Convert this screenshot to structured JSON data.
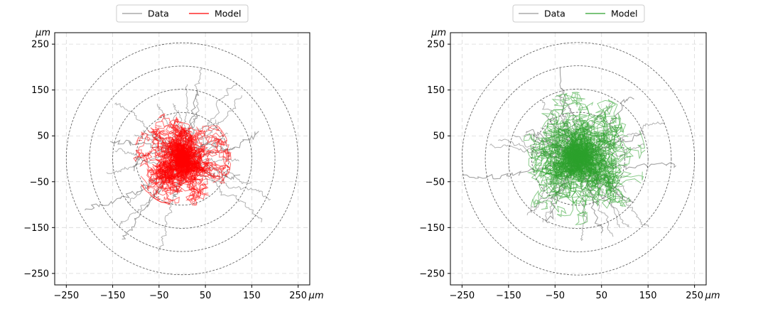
{
  "chart_data": [
    {
      "type": "line",
      "panel": "left",
      "x_unit": "μm",
      "y_unit": "μm",
      "xlim": [
        -275,
        275
      ],
      "ylim": [
        -275,
        275
      ],
      "xticks": [
        -250,
        -150,
        -50,
        50,
        150,
        250
      ],
      "yticks": [
        250,
        150,
        50,
        -50,
        -150,
        -250
      ],
      "xtick_labels": [
        "−250",
        "−150",
        "−50",
        "50",
        "150",
        "250"
      ],
      "ytick_labels": [
        "250",
        "150",
        "50",
        "−50",
        "−150",
        "−250"
      ],
      "grid": true,
      "reference_circles_radius": [
        100,
        150,
        200,
        250
      ],
      "legend_position": "top-center",
      "legend": [
        {
          "label": "Data",
          "color": "#999999"
        },
        {
          "label": "Model",
          "color": "#ff0000"
        }
      ],
      "series": [
        {
          "name": "Data",
          "color": "#999999",
          "tracks": [
            [
              [
                0,
                0
              ],
              [
                -20,
                -18
              ],
              [
                -45,
                -35
              ],
              [
                -70,
                -55
              ],
              [
                -95,
                -70
              ],
              [
                -120,
                -82
              ],
              [
                -150,
                -92
              ],
              [
                -180,
                -100
              ],
              [
                -210,
                -112
              ]
            ],
            [
              [
                0,
                0
              ],
              [
                -15,
                -25
              ],
              [
                -35,
                -55
              ],
              [
                -55,
                -80
              ],
              [
                -80,
                -105
              ],
              [
                -100,
                -130
              ],
              [
                -115,
                -155
              ],
              [
                -130,
                -175
              ]
            ],
            [
              [
                0,
                0
              ],
              [
                25,
                8
              ],
              [
                55,
                15
              ],
              [
                90,
                20
              ],
              [
                120,
                30
              ],
              [
                145,
                42
              ],
              [
                165,
                60
              ]
            ],
            [
              [
                0,
                0
              ],
              [
                10,
                25
              ],
              [
                15,
                55
              ],
              [
                20,
                85
              ],
              [
                25,
                110
              ],
              [
                30,
                150
              ]
            ],
            [
              [
                0,
                0
              ],
              [
                -30,
                15
              ],
              [
                -60,
                25
              ],
              [
                -95,
                33
              ],
              [
                -130,
                36
              ],
              [
                -155,
                38
              ]
            ],
            [
              [
                0,
                0
              ],
              [
                20,
                -10
              ],
              [
                45,
                -25
              ],
              [
                70,
                -38
              ],
              [
                95,
                -42
              ],
              [
                125,
                -35
              ]
            ],
            [
              [
                0,
                0
              ],
              [
                -20,
                10
              ],
              [
                -50,
                18
              ],
              [
                -80,
                10
              ],
              [
                -100,
                -5
              ],
              [
                -105,
                -25
              ]
            ],
            [
              [
                0,
                0
              ],
              [
                5,
                -20
              ],
              [
                0,
                -45
              ],
              [
                -10,
                -65
              ],
              [
                -20,
                -80
              ]
            ],
            [
              [
                0,
                0
              ],
              [
                30,
                20
              ],
              [
                50,
                35
              ],
              [
                70,
                30
              ],
              [
                85,
                45
              ]
            ],
            [
              [
                0,
                0
              ],
              [
                -10,
                20
              ],
              [
                -30,
                35
              ],
              [
                -50,
                45
              ],
              [
                -60,
                60
              ]
            ]
          ]
        },
        {
          "name": "Model",
          "color": "#ff0000",
          "radius_extent": 105
        }
      ]
    },
    {
      "type": "line",
      "panel": "right",
      "x_unit": "μm",
      "y_unit": "μm",
      "xlim": [
        -275,
        275
      ],
      "ylim": [
        -275,
        275
      ],
      "xticks": [
        -250,
        -150,
        -50,
        50,
        150,
        250
      ],
      "yticks": [
        250,
        150,
        50,
        -50,
        -150,
        -250
      ],
      "xtick_labels": [
        "−250",
        "−150",
        "−50",
        "50",
        "150",
        "250"
      ],
      "ytick_labels": [
        "250",
        "150",
        "50",
        "−50",
        "−150",
        "−250"
      ],
      "grid": true,
      "reference_circles_radius": [
        100,
        150,
        200,
        250
      ],
      "legend_position": "top-center",
      "legend": [
        {
          "label": "Data",
          "color": "#999999"
        },
        {
          "label": "Model",
          "color": "#2ca02c"
        }
      ],
      "series": [
        {
          "name": "Data",
          "color": "#999999",
          "tracks": [
            [
              [
                0,
                0
              ],
              [
                -40,
                -10
              ],
              [
                -80,
                -20
              ],
              [
                -120,
                -30
              ],
              [
                -150,
                -35
              ],
              [
                -180,
                -40
              ],
              [
                -210,
                -38
              ],
              [
                -250,
                -35
              ]
            ],
            [
              [
                0,
                0
              ],
              [
                -15,
                30
              ],
              [
                -25,
                70
              ],
              [
                -30,
                110
              ],
              [
                -35,
                150
              ],
              [
                -40,
                200
              ]
            ],
            [
              [
                0,
                0
              ],
              [
                30,
                -10
              ],
              [
                70,
                -15
              ],
              [
                110,
                -20
              ],
              [
                150,
                -15
              ],
              [
                185,
                -10
              ],
              [
                210,
                -15
              ]
            ],
            [
              [
                0,
                0
              ],
              [
                30,
                20
              ],
              [
                60,
                55
              ],
              [
                80,
                90
              ],
              [
                100,
                125
              ],
              [
                120,
                130
              ]
            ],
            [
              [
                0,
                0
              ],
              [
                10,
                -30
              ],
              [
                25,
                -70
              ],
              [
                35,
                -110
              ],
              [
                45,
                -150
              ],
              [
                50,
                -160
              ]
            ],
            [
              [
                0,
                0
              ],
              [
                -20,
                -30
              ],
              [
                -40,
                -70
              ],
              [
                -55,
                -110
              ],
              [
                -65,
                -140
              ]
            ],
            [
              [
                0,
                0
              ],
              [
                -30,
                25
              ],
              [
                -60,
                40
              ],
              [
                -90,
                55
              ],
              [
                -110,
                60
              ]
            ],
            [
              [
                0,
                0
              ],
              [
                25,
                -30
              ],
              [
                55,
                -55
              ],
              [
                85,
                -80
              ],
              [
                120,
                -95
              ]
            ],
            [
              [
                0,
                0
              ],
              [
                -20,
                40
              ],
              [
                -45,
                60
              ],
              [
                -70,
                95
              ]
            ],
            [
              [
                0,
                0
              ],
              [
                35,
                15
              ],
              [
                70,
                30
              ],
              [
                105,
                40
              ],
              [
                140,
                60
              ]
            ]
          ]
        },
        {
          "name": "Model",
          "color": "#2ca02c",
          "radius_extent": 145
        }
      ]
    }
  ]
}
